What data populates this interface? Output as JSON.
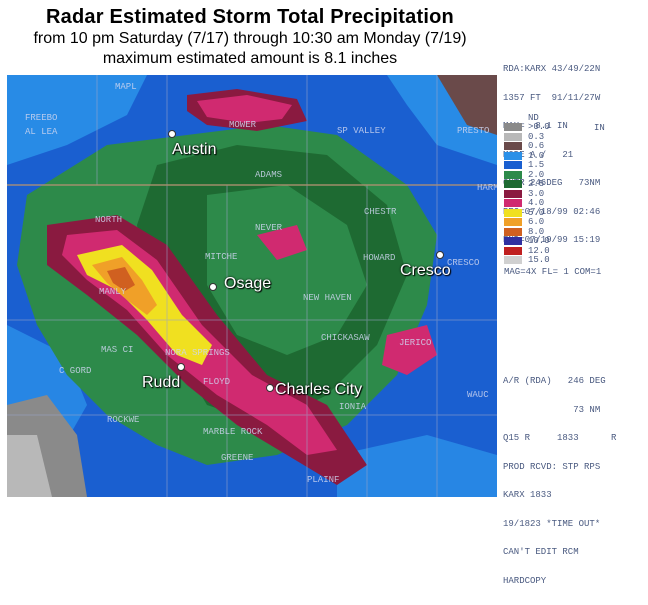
{
  "title": {
    "line1": "Radar Estimated Storm Total Precipitation",
    "line2": "from 10 pm Saturday (7/17) through 10:30 am Monday (7/19)",
    "line3": "maximum estimated amount is 8.1 inches"
  },
  "panel": {
    "header_lines": [
      "RDA:KARX 43/49/22N",
      "1357 FT  91/11/27W",
      "MAX=  8.1 IN",
      "MODE A /   21",
      "CNTR 246DEG   73NM",
      "BEG=07/18/99 02:46",
      "END=07/19/99 15:19"
    ],
    "legend_nodata": "ND",
    "legend_unit": "IN",
    "legend": [
      {
        "label": ">0.0",
        "color": "#8a8a8a"
      },
      {
        "label": "0.3",
        "color": "#b8b8b8"
      },
      {
        "label": "0.6",
        "color": "#6a4a4a"
      },
      {
        "label": "1.0",
        "color": "#2a90e8"
      },
      {
        "label": "1.5",
        "color": "#1a5fd0"
      },
      {
        "label": "2.0",
        "color": "#2d8a4a"
      },
      {
        "label": "2.5",
        "color": "#1e6a32"
      },
      {
        "label": "3.0",
        "color": "#8a1a40"
      },
      {
        "label": "4.0",
        "color": "#d02a70"
      },
      {
        "label": "5.0",
        "color": "#f0e020"
      },
      {
        "label": "6.0",
        "color": "#f0a028"
      },
      {
        "label": "8.0",
        "color": "#d06020"
      },
      {
        "label": "10.0",
        "color": "#3030a0"
      },
      {
        "label": "12.0",
        "color": "#c02020"
      },
      {
        "label": "15.0",
        "color": "#d0d0d0"
      }
    ],
    "mag_line": "MAG=4X FL= 1 COM=1",
    "footer_lines": [
      "A/R (RDA)   246 DEG",
      "             73 NM",
      "Q15 R     1833      R",
      "PROD RCVD: STP RPS",
      "KARX 1833",
      "19/1823 *TIME OUT*",
      "CAN'T EDIT RCM",
      "HARDCOPY"
    ]
  },
  "map": {
    "counties": [
      "MAPL",
      "FREEBO",
      "AL LEA",
      "MOWER",
      "SP VALLEY",
      "PRESTO",
      "HARM",
      "ADAMS",
      "CHESTR",
      "NORTH",
      "NEVER",
      "HOWARD",
      "CRESCO",
      "MITCHE",
      "MANLY",
      "NEW HAVEN",
      "MAS CI",
      "NORA SPRINGS",
      "CHICKASAW",
      "JERICO",
      "C GORD",
      "FLOYD",
      "IONIA",
      "ROCKWE",
      "MARBLE ROCK",
      "GREENE",
      "WAUC",
      "PLAINF"
    ],
    "cities": [
      "Austin",
      "Osage",
      "Cresco",
      "Rudd",
      "Charles City"
    ]
  }
}
